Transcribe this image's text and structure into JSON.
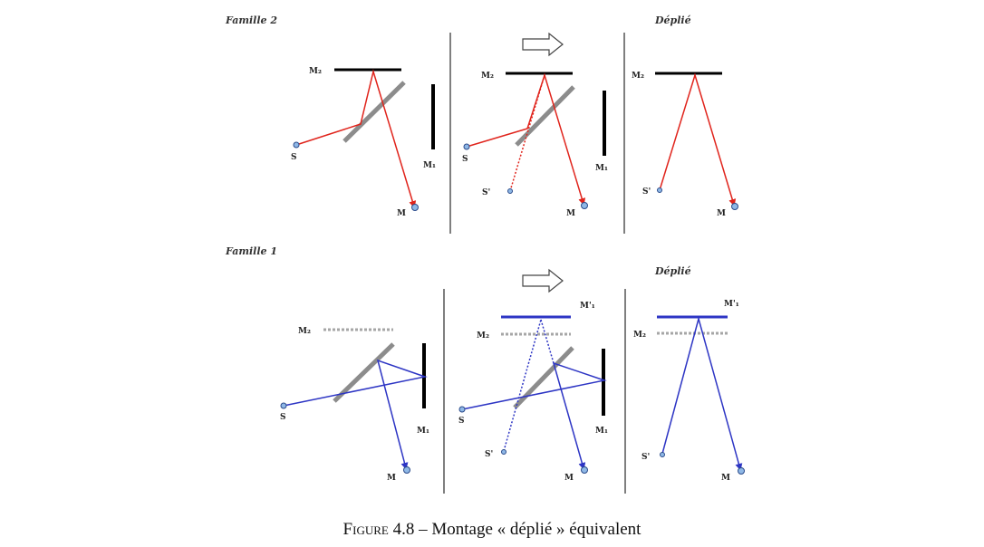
{
  "colors": {
    "mirror": "#000000",
    "separator": "#555555",
    "red_ray": "#e0241c",
    "blue_ray": "#2d35c4",
    "virtual_mirror": "#2d35c4",
    "dashed_mirror": "#a6a6a6",
    "point_fill": "#8fb8e6",
    "point_stroke": "#2a4a8a"
  },
  "family2": {
    "title": "Famille 2",
    "unfolded_title": "Déplié",
    "labels": {
      "m2_a": "M₂",
      "m1_a": "M₁",
      "s_a": "S",
      "m_a": "M",
      "m2_b": "M₂",
      "m1_b": "M₁",
      "s_b": "S",
      "sprime_b": "S'",
      "m_b": "M",
      "m2_c": "M₂",
      "sprime_c": "S'",
      "m_c": "M"
    }
  },
  "family1": {
    "title": "Famille 1",
    "unfolded_title": "Déplié",
    "labels": {
      "m2_a": "M₂",
      "m1_a": "M₁",
      "s_a": "S",
      "m_a": "M",
      "m1p_b": "M'₁",
      "m2_b": "M₂",
      "m1_b": "M₁",
      "s_b": "S",
      "sprime_b": "S'",
      "m_b": "M",
      "m1p_c": "M'₁",
      "m2_c": "M₂",
      "sprime_c": "S'",
      "m_c": "M"
    }
  },
  "caption": {
    "figure_word": "Figure 4.8",
    "text": " – Montage « déplié » équivalent"
  }
}
